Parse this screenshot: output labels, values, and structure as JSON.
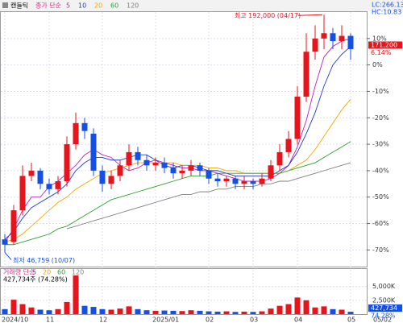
{
  "chart_data": {
    "type": "candlestick",
    "title": "캔들틱",
    "ma_prefix": "종가 단순",
    "categories": [
      "2024/10",
      null,
      null,
      null,
      null,
      "11",
      null,
      null,
      null,
      null,
      null,
      "12",
      null,
      null,
      null,
      null,
      null,
      "2025/01",
      null,
      null,
      null,
      null,
      null,
      "02",
      null,
      null,
      null,
      null,
      "03",
      null,
      null,
      null,
      null,
      "04",
      null,
      null,
      null,
      null,
      null,
      "05"
    ],
    "last_date": "05/02",
    "open": [
      -66,
      -67,
      -55,
      -42,
      -40,
      -45,
      -47,
      -44,
      -30,
      -22,
      -26,
      -40,
      -45,
      -42,
      -38,
      -33,
      -36,
      -38,
      -37,
      -39,
      -41,
      -40,
      -38,
      -40,
      -43,
      -44,
      -43,
      -45,
      -44,
      -45,
      -43,
      -38,
      -33,
      -28,
      -12,
      5,
      10,
      12,
      9,
      11
    ],
    "high": [
      -64,
      -53,
      -38,
      -37,
      -39,
      -43,
      -42,
      -27,
      -18,
      -20,
      -24,
      -38,
      -40,
      -36,
      -30,
      -31,
      -34,
      -35,
      -35,
      -37,
      -38,
      -36,
      -37,
      -39,
      -41,
      -42,
      -42,
      -42,
      -43,
      -41,
      -36,
      -30,
      -25,
      -8,
      12,
      15,
      19,
      14,
      15,
      12
    ],
    "low": [
      -71,
      -68,
      -57,
      -44,
      -47,
      -49,
      -49,
      -46,
      -32,
      -28,
      -42,
      -48,
      -47,
      -44,
      -40,
      -38,
      -40,
      -40,
      -41,
      -43,
      -43,
      -42,
      -42,
      -45,
      -46,
      -46,
      -47,
      -47,
      -47,
      -46,
      -44,
      -40,
      -35,
      -30,
      -14,
      2,
      6,
      6,
      6,
      2
    ],
    "close": [
      -68,
      -55,
      -42,
      -40,
      -45,
      -47,
      -44,
      -30,
      -22,
      -25,
      -40,
      -45,
      -42,
      -38,
      -33,
      -36,
      -38,
      -37,
      -39,
      -41,
      -40,
      -38,
      -40,
      -43,
      -44,
      -43,
      -45,
      -44,
      -45,
      -43,
      -38,
      -33,
      -28,
      -12,
      5,
      10,
      12,
      9,
      11,
      6
    ],
    "up_color": "#e8141c",
    "down_color": "#1450e6",
    "series": [
      {
        "name": "5",
        "color": "#c020c0",
        "values": [
          -67,
          -62,
          -55,
          -50,
          -50,
          -46,
          -44,
          -41,
          -38,
          -34,
          -32,
          -34,
          -35,
          -38,
          -40,
          -39,
          -37,
          -36,
          -37,
          -38,
          -39,
          -39,
          -40,
          -40,
          -41,
          -42,
          -43,
          -44,
          -44,
          -44,
          -43,
          -41,
          -38,
          -31,
          -21,
          -8,
          3,
          7,
          9,
          10
        ]
      },
      {
        "name": "10",
        "color": "#1e3cd2",
        "values": [
          -66,
          -63,
          -58,
          -54,
          -52,
          -50,
          -48,
          -45,
          -40,
          -37,
          -35,
          -35,
          -36,
          -36,
          -35,
          -34,
          -34,
          -36,
          -38,
          -39,
          -38,
          -38,
          -39,
          -40,
          -40,
          -41,
          -42,
          -42,
          -42,
          -42,
          -42,
          -40,
          -38,
          -33,
          -26,
          -18,
          -8,
          0,
          4,
          7
        ]
      },
      {
        "name": "20",
        "color": "#f0a800",
        "values": [
          -67,
          -66,
          -64,
          -61,
          -58,
          -55,
          -52,
          -50,
          -47,
          -45,
          -43,
          -41,
          -40,
          -39,
          -38,
          -37,
          -37,
          -37,
          -37,
          -37,
          -38,
          -38,
          -38,
          -39,
          -39,
          -40,
          -40,
          -41,
          -41,
          -41,
          -41,
          -41,
          -40,
          -38,
          -36,
          -32,
          -27,
          -22,
          -17,
          -13
        ]
      },
      {
        "name": "60",
        "color": "#30a030",
        "values": [
          -68,
          -68,
          -67,
          -66,
          -65,
          -64,
          -62,
          -61,
          -59,
          -57,
          -55,
          -53,
          -51,
          -50,
          -49,
          -48,
          -47,
          -46,
          -45,
          -44,
          -43,
          -42,
          -42,
          -42,
          -41,
          -41,
          -41,
          -41,
          -41,
          -41,
          -41,
          -41,
          -40,
          -39,
          -38,
          -37,
          -35,
          -33,
          -31,
          -29
        ]
      },
      {
        "name": "120",
        "color": "#808080",
        "values": [
          null,
          null,
          null,
          null,
          null,
          null,
          null,
          -62,
          -61,
          -60,
          -59,
          -58,
          -57,
          -56,
          -55,
          -54,
          -53,
          -52,
          -51,
          -50,
          -49,
          -49,
          -48,
          -48,
          -47,
          -47,
          -46,
          -46,
          -46,
          -45,
          -45,
          -44,
          -44,
          -43,
          -42,
          -41,
          -40,
          -39,
          -38,
          -37
        ]
      }
    ],
    "ylim": [
      -76,
      20
    ],
    "yticks": [
      {
        "value": 10,
        "label": "10%"
      },
      {
        "value": 0,
        "label": "0%"
      },
      {
        "value": -10,
        "label": "-10%"
      },
      {
        "value": -20,
        "label": "-20%"
      },
      {
        "value": -30,
        "label": "-30%"
      },
      {
        "value": -40,
        "label": "-40%"
      },
      {
        "value": -50,
        "label": "-50%"
      },
      {
        "value": -60,
        "label": "-60%"
      },
      {
        "value": -70,
        "label": "-70%"
      }
    ],
    "lc_label": "LC:266.13",
    "hc_label": "HC:10.83",
    "last": {
      "value": 6.14,
      "price_label": "171,200",
      "label": "6.14%"
    },
    "high_note": {
      "value": 19,
      "label": "최고 192,000 (04/17)"
    },
    "low_note": {
      "value": -71,
      "label": "최저 46,759 (10/07)"
    },
    "volume": {
      "prefix": "거래량 단순",
      "ma_names": [
        "5",
        "20",
        "60",
        "120"
      ],
      "ma_colors": [
        "#c020c0",
        "#f0a800",
        "#30a030",
        "#808080"
      ],
      "values": [
        900000,
        2600000,
        1800000,
        1200000,
        800000,
        700000,
        900000,
        2200000,
        7000000,
        1500000,
        1300000,
        900000,
        800000,
        1000000,
        1400000,
        900000,
        700000,
        600000,
        650000,
        600000,
        550000,
        700000,
        600000,
        500000,
        450000,
        500000,
        400000,
        450000,
        400000,
        500000,
        1000000,
        1500000,
        1800000,
        3000000,
        2500000,
        1200000,
        1400000,
        900000,
        800000,
        427734
      ],
      "last_label": "427,734주 (74.28%)",
      "last_box": "427,734",
      "last_pct": "74.28%",
      "ylim": [
        0,
        8000000
      ],
      "yticks": [
        {
          "value": 5000000,
          "label": "5,000K"
        },
        {
          "value": 2500000,
          "label": "2,500K"
        }
      ]
    }
  }
}
